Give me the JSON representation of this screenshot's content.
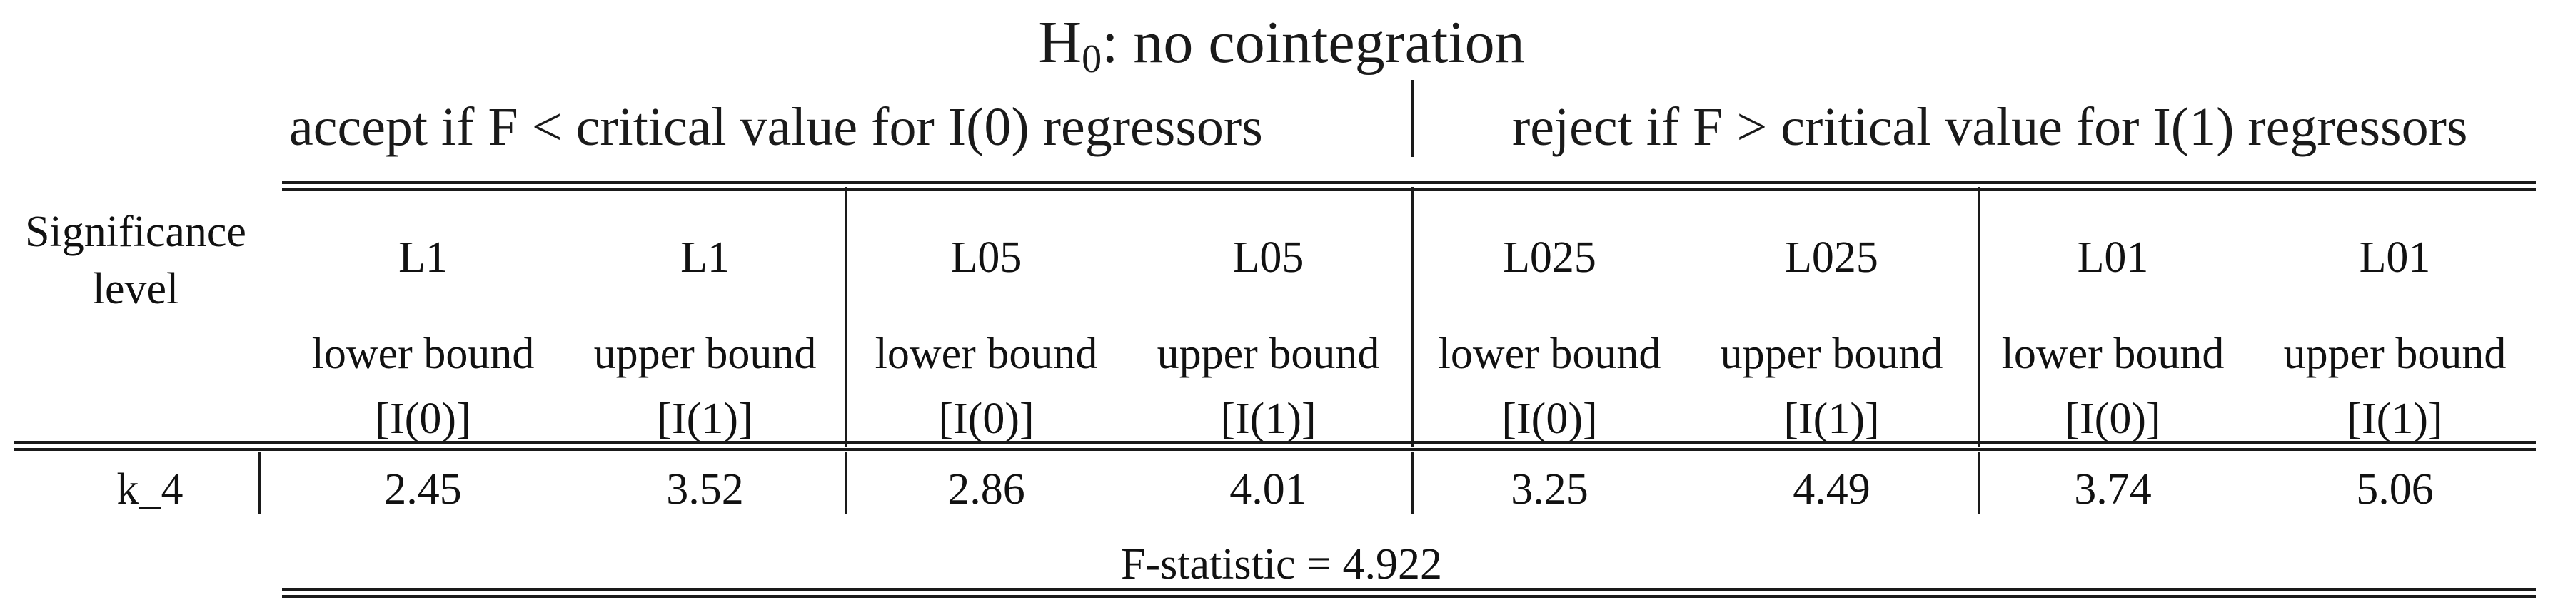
{
  "title": {
    "prefix": "H",
    "sub": "0",
    "suffix": ": no cointegration"
  },
  "subheader": {
    "left": "accept if F < critical value for I(0) regressors",
    "right": "reject if F > critical value for I(1) regressors"
  },
  "table": {
    "row_header": "Significance level",
    "columns": [
      {
        "level": "L1",
        "bound": "lower bound",
        "order": "[I(0)]"
      },
      {
        "level": "L1",
        "bound": "upper bound",
        "order": "[I(1)]"
      },
      {
        "level": "L05",
        "bound": "lower bound",
        "order": "[I(0)]"
      },
      {
        "level": "L05",
        "bound": "upper bound",
        "order": "[I(1)]"
      },
      {
        "level": "L025",
        "bound": "lower bound",
        "order": "[I(0)]"
      },
      {
        "level": "L025",
        "bound": "upper bound",
        "order": "[I(1)]"
      },
      {
        "level": "L01",
        "bound": "lower bound",
        "order": "[I(0)]"
      },
      {
        "level": "L01",
        "bound": "upper bound",
        "order": "[I(1)]"
      }
    ],
    "rows": [
      {
        "label": "k_4",
        "values": [
          "2.45",
          "3.52",
          "2.86",
          "4.01",
          "3.25",
          "4.49",
          "3.74",
          "5.06"
        ]
      }
    ],
    "footer": "F-statistic = 4.922"
  }
}
